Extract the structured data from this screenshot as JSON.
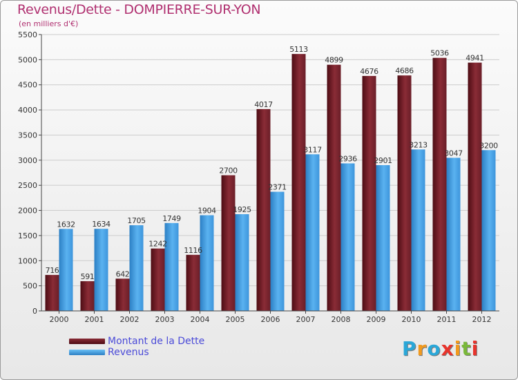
{
  "header": {
    "title": "Revenus/Dette - DOMPIERRE-SUR-YON",
    "subtitle": "(en milliers d'€)"
  },
  "logo": {
    "letters": [
      "P",
      "r",
      "o",
      "x",
      "i",
      "t",
      "i"
    ],
    "colors": [
      "#2aa7d8",
      "#f29a1e",
      "#2aa7d8",
      "#e8342c",
      "#f29a1e",
      "#7ab83a",
      "#e8342c"
    ]
  },
  "colors": {
    "dette": "#7a2630",
    "revenus": "#4aa3e6",
    "axis": "#444444",
    "grid": "#cccccc"
  },
  "chart_data": {
    "type": "bar",
    "title": "Revenus/Dette - DOMPIERRE-SUR-YON",
    "subtitle": "(en milliers d'€)",
    "categories": [
      "2000",
      "2001",
      "2002",
      "2003",
      "2004",
      "2005",
      "2006",
      "2007",
      "2008",
      "2009",
      "2010",
      "2011",
      "2012"
    ],
    "series": [
      {
        "name": "Montant de la Dette",
        "values": [
          716,
          591,
          642,
          1242,
          1116,
          2700,
          4017,
          5113,
          4899,
          4676,
          4686,
          5036,
          4941
        ]
      },
      {
        "name": "Revenus",
        "values": [
          1632,
          1634,
          1705,
          1749,
          1904,
          1925,
          2371,
          3117,
          2936,
          2901,
          3213,
          3047,
          3200
        ]
      }
    ],
    "ylim": [
      0,
      5500
    ],
    "yticks": [
      "0",
      "500",
      "1000",
      "1500",
      "2000",
      "2500",
      "3000",
      "3500",
      "4000",
      "4500",
      "5000",
      "5500"
    ],
    "grid": true,
    "legend": "bottom-left"
  }
}
